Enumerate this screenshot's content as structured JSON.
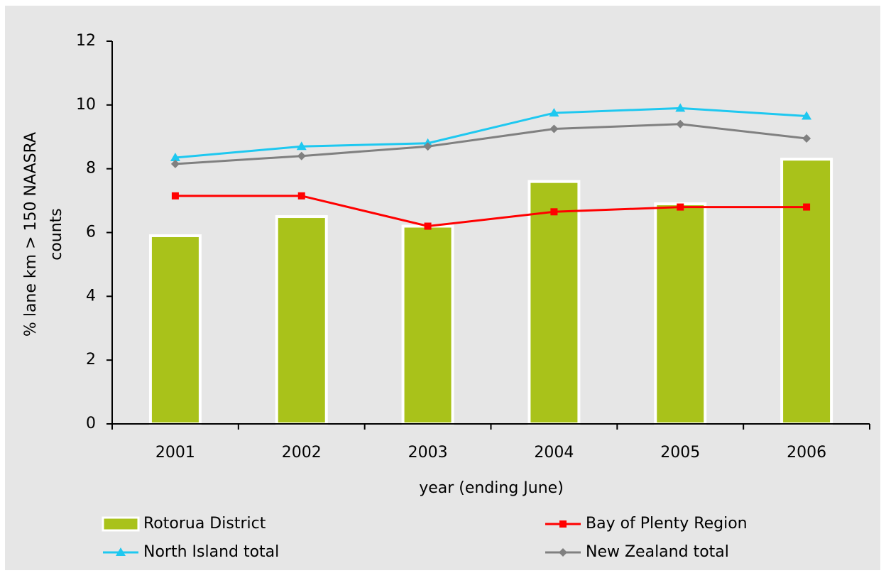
{
  "chart_data": {
    "type": "bar",
    "y_label": [
      "% lane km > 150 NAASRA",
      "counts"
    ],
    "x_label": "year (ending June)",
    "categories": [
      "2001",
      "2002",
      "2003",
      "2004",
      "2005",
      "2006"
    ],
    "ylim": [
      0,
      12
    ],
    "yticks": [
      0,
      2,
      4,
      6,
      8,
      10,
      12
    ],
    "grid": false,
    "series": [
      {
        "name": "Rotorua District",
        "type": "bar",
        "color": "#a9c21a",
        "values": [
          5.9,
          6.5,
          6.2,
          7.6,
          6.9,
          8.3
        ]
      },
      {
        "name": "Bay of Plenty Region",
        "type": "line",
        "marker": "square",
        "color": "#ff0000",
        "values": [
          7.15,
          7.15,
          6.2,
          6.65,
          6.8,
          6.8
        ]
      },
      {
        "name": "North Island total",
        "type": "line",
        "marker": "triangle",
        "color": "#1ec8f0",
        "values": [
          8.35,
          8.7,
          8.8,
          9.75,
          9.9,
          9.65
        ]
      },
      {
        "name": "New Zealand total",
        "type": "line",
        "marker": "diamond",
        "color": "#808080",
        "values": [
          8.15,
          8.4,
          8.7,
          9.25,
          9.4,
          8.95
        ]
      }
    ]
  }
}
